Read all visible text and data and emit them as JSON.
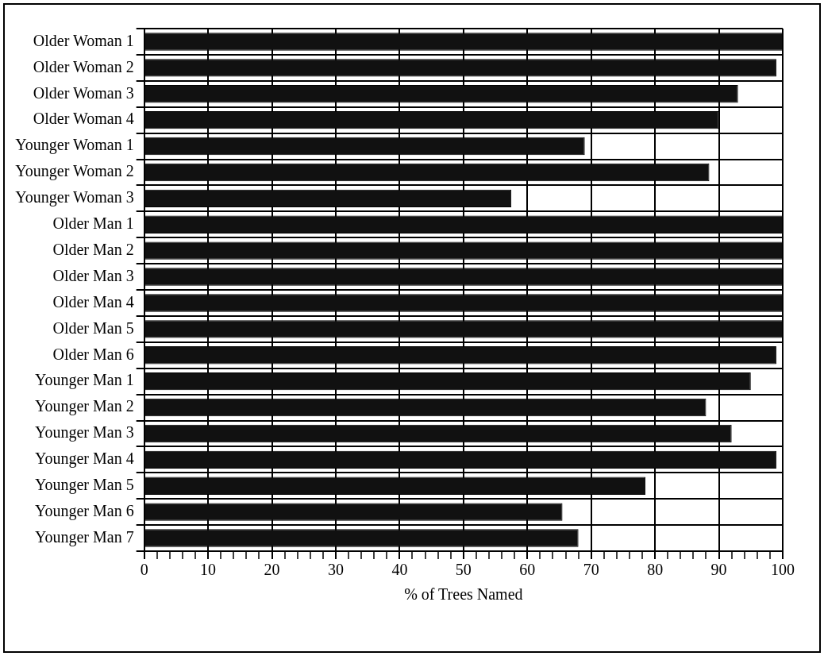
{
  "chart_data": {
    "type": "bar",
    "orientation": "horizontal",
    "xlabel": "% of Trees Named",
    "categories": [
      "Older Woman 1",
      "Older Woman 2",
      "Older Woman 3",
      "Older Woman 4",
      "Younger Woman 1",
      "Younger Woman 2",
      "Younger Woman 3",
      "Older Man 1",
      "Older Man 2",
      "Older Man 3",
      "Older Man 4",
      "Older Man 5",
      "Older Man 6",
      "Younger Man 1",
      "Younger Man 2",
      "Younger Man 3",
      "Younger Man 4",
      "Younger Man 5",
      "Younger Man 6",
      "Younger Man 7"
    ],
    "values": [
      100,
      99,
      93,
      90,
      69,
      88.5,
      57.5,
      100,
      100,
      100,
      100,
      100,
      99,
      95,
      88,
      92,
      99,
      78.5,
      65.5,
      68
    ],
    "color": "#111111",
    "xlim": [
      0,
      100
    ],
    "xticks": [
      0,
      {
        "value": 2,
        "label": null
      },
      {
        "value": 4,
        "label": null
      },
      {
        "value": 6,
        "label": null
      },
      {
        "value": 8,
        "label": null
      },
      10,
      {
        "value": 12,
        "label": null
      },
      {
        "value": 14,
        "label": null
      },
      {
        "value": 16,
        "label": null
      },
      {
        "value": 18,
        "label": null
      },
      20,
      {
        "value": 22,
        "label": null
      },
      {
        "value": 24,
        "label": null
      },
      {
        "value": 26,
        "label": null
      },
      {
        "value": 28,
        "label": null
      },
      30,
      {
        "value": 32,
        "label": null
      },
      {
        "value": 34,
        "label": null
      },
      {
        "value": 36,
        "label": null
      },
      {
        "value": 38,
        "label": null
      },
      40,
      {
        "value": 42,
        "label": null
      },
      {
        "value": 44,
        "label": null
      },
      {
        "value": 46,
        "label": null
      },
      {
        "value": 48,
        "label": null
      },
      50,
      {
        "value": 52,
        "label": null
      },
      {
        "value": 54,
        "label": null
      },
      {
        "value": 56,
        "label": null
      },
      {
        "value": 58,
        "label": null
      },
      60,
      {
        "value": 62,
        "label": null
      },
      {
        "value": 64,
        "label": null
      },
      {
        "value": 66,
        "label": null
      },
      {
        "value": 68,
        "label": null
      },
      70,
      {
        "value": 72,
        "label": null
      },
      {
        "value": 74,
        "label": null
      },
      {
        "value": 76,
        "label": null
      },
      {
        "value": 78,
        "label": null
      },
      80,
      {
        "value": 82,
        "label": null
      },
      {
        "value": 84,
        "label": null
      },
      {
        "value": 86,
        "label": null
      },
      {
        "value": 88,
        "label": null
      },
      90,
      {
        "value": 92,
        "label": null
      },
      {
        "value": 94,
        "label": null
      },
      {
        "value": 96,
        "label": null
      },
      {
        "value": 98,
        "label": null
      },
      100
    ],
    "grid": true,
    "legend": false
  }
}
